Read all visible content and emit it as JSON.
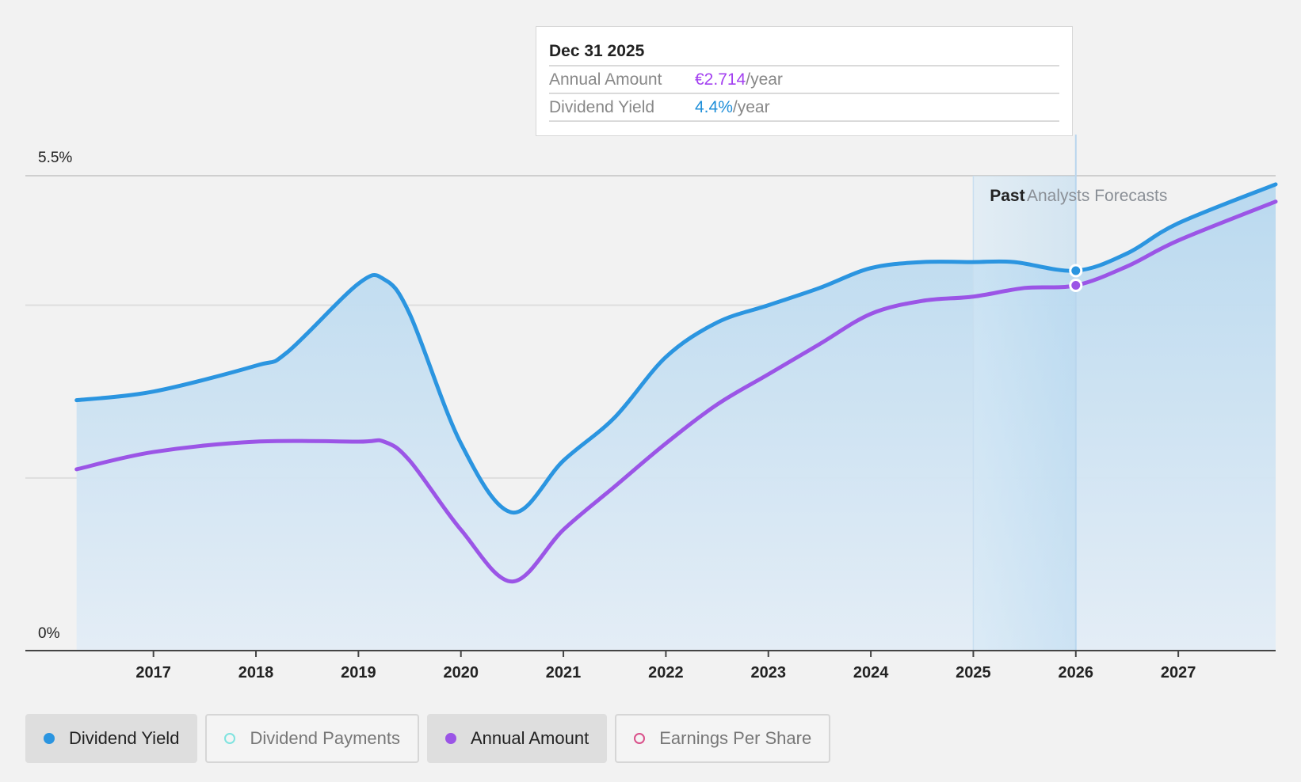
{
  "chart_data": {
    "type": "area",
    "y_axis": {
      "top_label": "5.5%",
      "bottom_label": "0%",
      "ylim": [
        0,
        5.5
      ],
      "gridlines": [
        0,
        2,
        4,
        5.5
      ]
    },
    "x_axis": {
      "ticks": [
        "2017",
        "2018",
        "2019",
        "2020",
        "2021",
        "2022",
        "2023",
        "2024",
        "2025",
        "2026",
        "2027"
      ],
      "xlim": [
        2015.75,
        2027.95
      ]
    },
    "series": [
      {
        "name": "Dividend Yield",
        "color": "#2b95e0",
        "points": [
          [
            2016.25,
            2.9
          ],
          [
            2017.0,
            3.0
          ],
          [
            2018.0,
            3.3
          ],
          [
            2018.3,
            3.45
          ],
          [
            2019.0,
            4.25
          ],
          [
            2019.25,
            4.3
          ],
          [
            2019.5,
            3.9
          ],
          [
            2020.0,
            2.4
          ],
          [
            2020.5,
            1.6
          ],
          [
            2021.0,
            2.2
          ],
          [
            2021.5,
            2.7
          ],
          [
            2022.0,
            3.4
          ],
          [
            2022.5,
            3.8
          ],
          [
            2023.0,
            4.0
          ],
          [
            2023.5,
            4.2
          ],
          [
            2024.0,
            4.43
          ],
          [
            2024.5,
            4.5
          ],
          [
            2025.0,
            4.5
          ],
          [
            2025.4,
            4.5
          ],
          [
            2026.0,
            4.4
          ],
          [
            2026.5,
            4.6
          ],
          [
            2027.0,
            4.95
          ],
          [
            2027.95,
            5.4
          ]
        ]
      },
      {
        "name": "Annual Amount",
        "color": "#9b55e6",
        "points": [
          [
            2016.25,
            2.1
          ],
          [
            2017.0,
            2.3
          ],
          [
            2018.0,
            2.42
          ],
          [
            2019.0,
            2.42
          ],
          [
            2019.25,
            2.42
          ],
          [
            2019.5,
            2.2
          ],
          [
            2020.0,
            1.4
          ],
          [
            2020.5,
            0.8
          ],
          [
            2021.0,
            1.4
          ],
          [
            2021.5,
            1.9
          ],
          [
            2022.0,
            2.4
          ],
          [
            2022.5,
            2.85
          ],
          [
            2023.0,
            3.2
          ],
          [
            2023.5,
            3.55
          ],
          [
            2024.0,
            3.9
          ],
          [
            2024.5,
            4.05
          ],
          [
            2025.0,
            4.1
          ],
          [
            2025.5,
            4.2
          ],
          [
            2026.0,
            4.23
          ],
          [
            2026.5,
            4.45
          ],
          [
            2027.0,
            4.75
          ],
          [
            2027.95,
            5.2
          ]
        ]
      }
    ],
    "past_label": "Past",
    "forecast_label": "Analysts Forecasts",
    "forecast_start": 2025.0,
    "highlight_x": 2026.0,
    "tooltip": {
      "date": "Dec 31 2025",
      "rows": [
        {
          "label": "Annual Amount",
          "value": "€2.714",
          "unit": "/year",
          "color": "#a340f0"
        },
        {
          "label": "Dividend Yield",
          "value": "4.4%",
          "unit": "/year",
          "color": "#1f8fd9"
        }
      ]
    },
    "legend": [
      {
        "label": "Dividend Yield",
        "color": "#2b95e0",
        "active": true
      },
      {
        "label": "Dividend Payments",
        "color": "#7fe3df",
        "active": false
      },
      {
        "label": "Annual Amount",
        "color": "#9b55e6",
        "active": true
      },
      {
        "label": "Earnings Per Share",
        "color": "#d9508a",
        "active": false
      }
    ]
  }
}
